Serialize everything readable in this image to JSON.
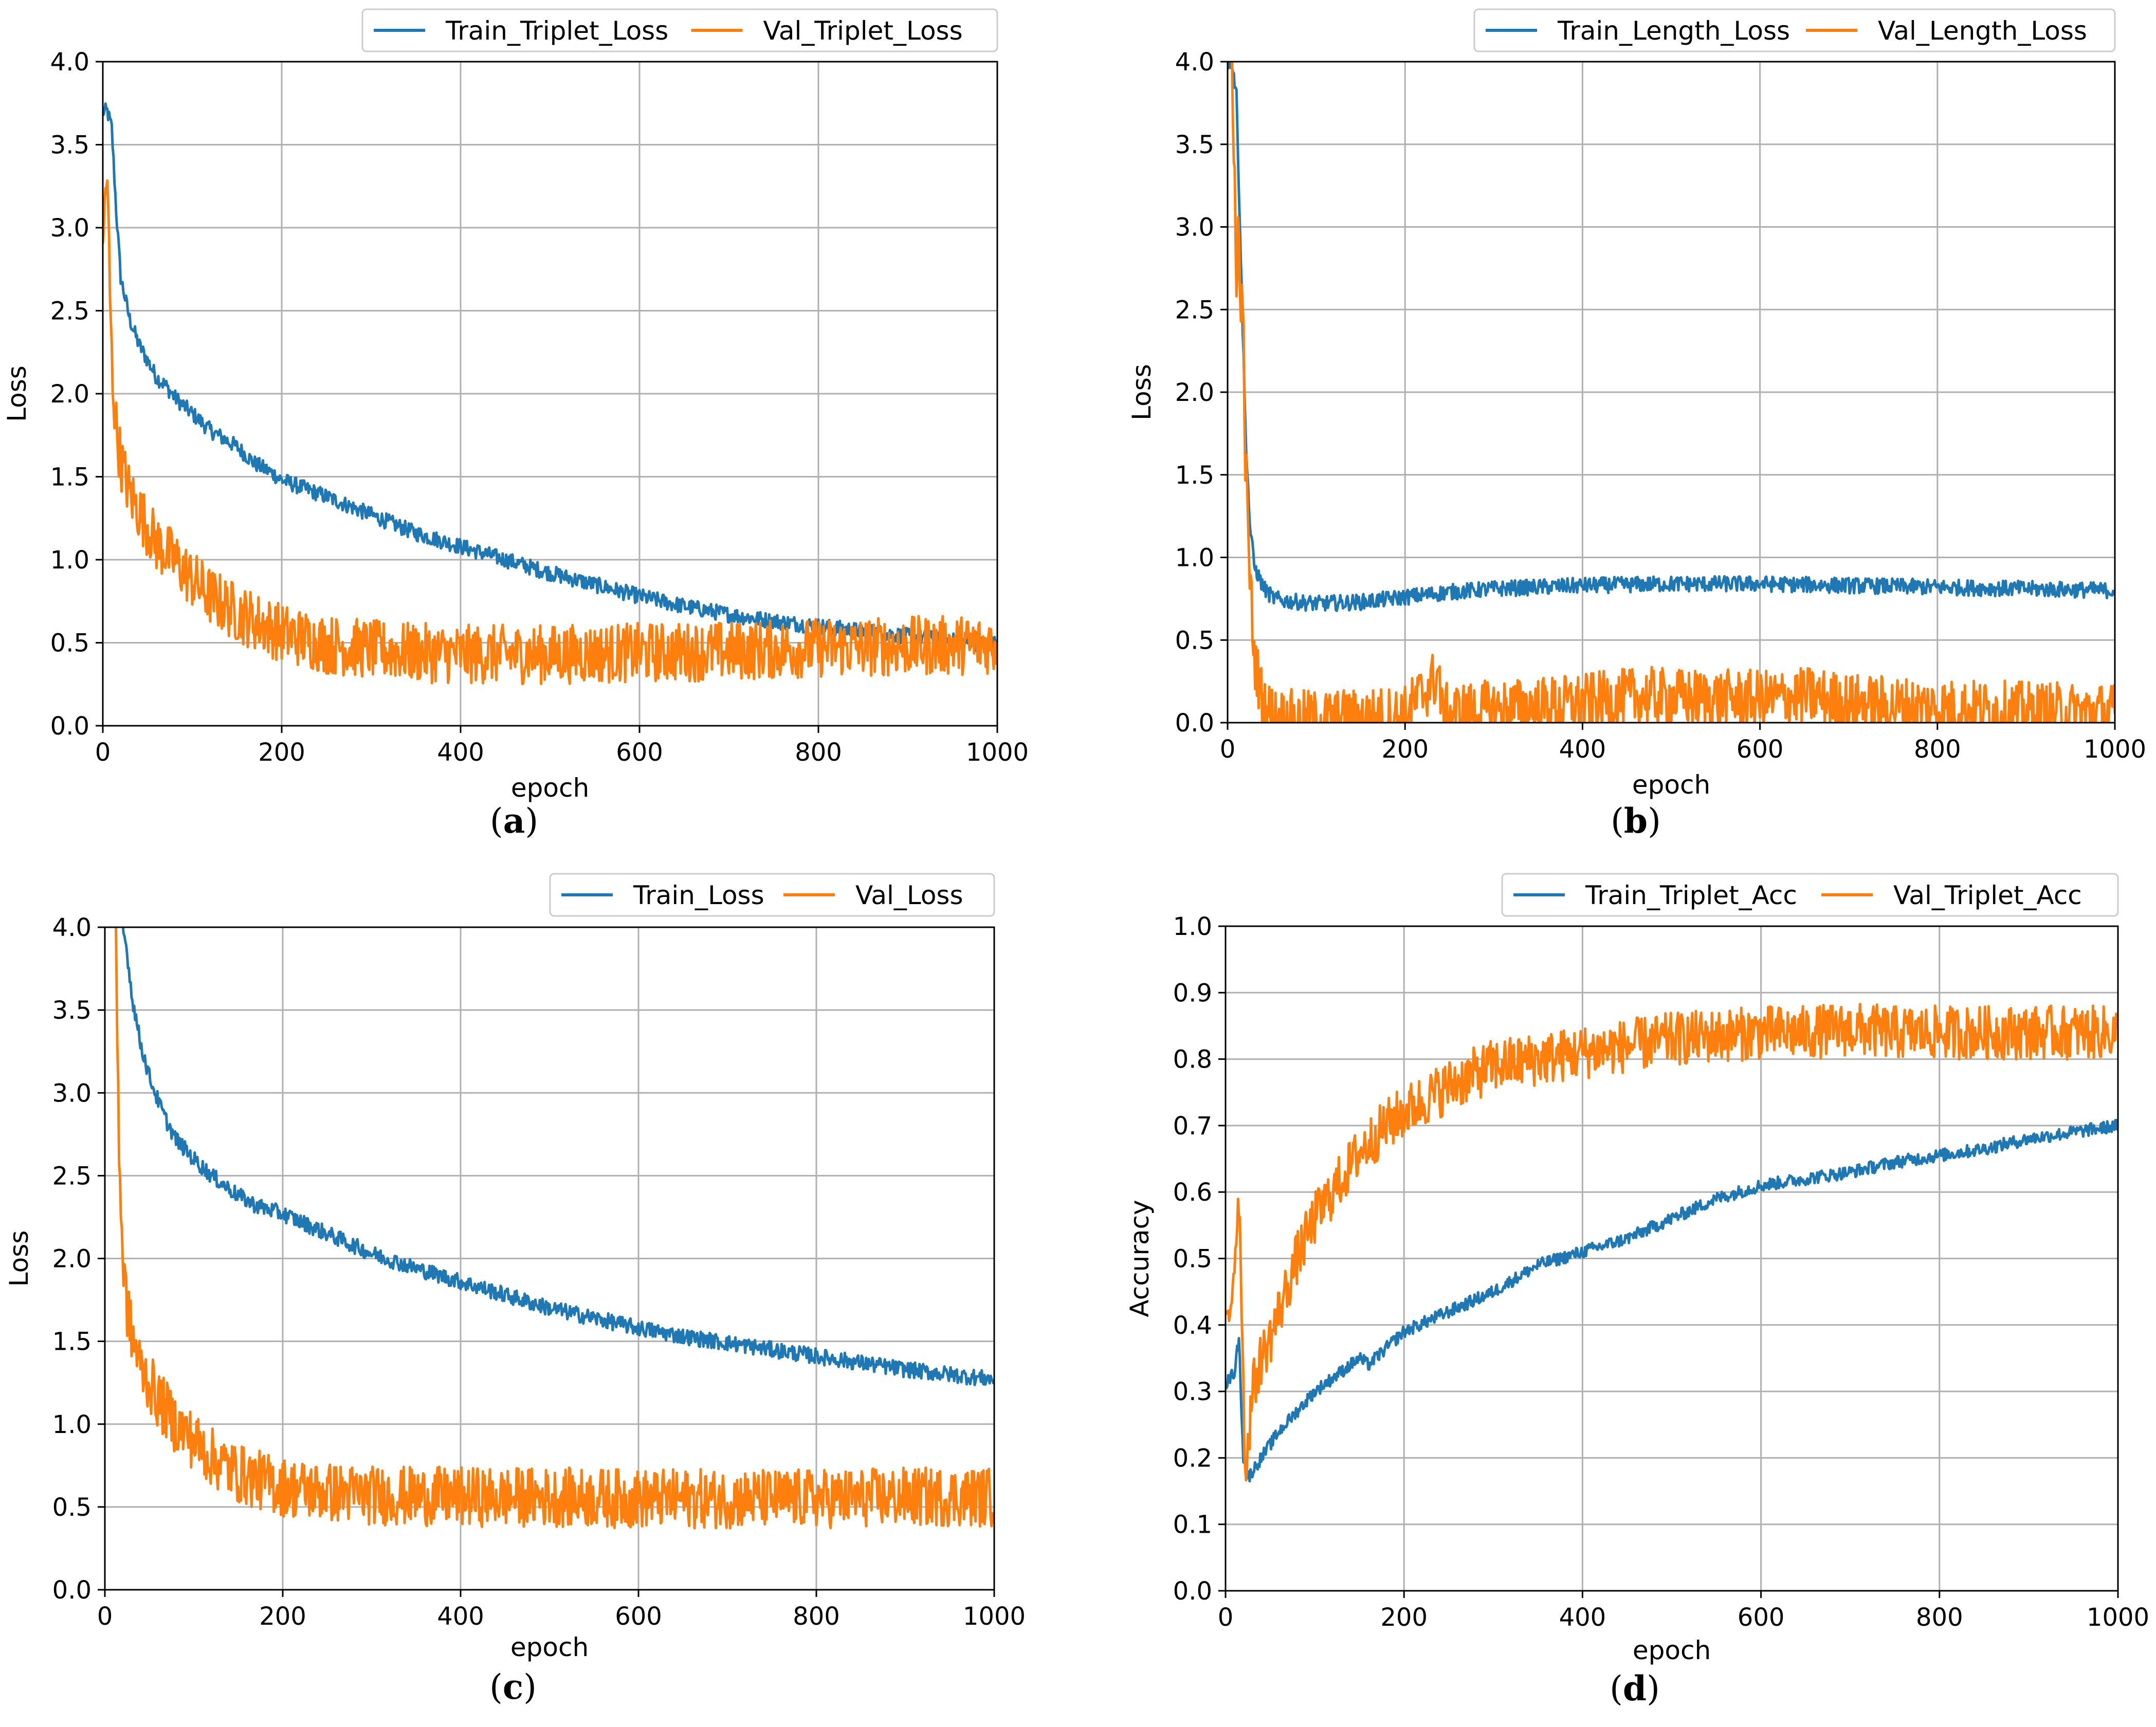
{
  "colors": {
    "train": "#1f77b4",
    "val": "#ff7f0e",
    "grid": "#b0b0b0",
    "frame": "#000000"
  },
  "chart_data": [
    {
      "panel": "a",
      "type": "line",
      "caption": {
        "open": "(",
        "letter": "a",
        "close": ")"
      },
      "xlabel": "epoch",
      "ylabel": "Loss",
      "xlim": [
        0,
        1000
      ],
      "ylim": [
        0,
        4.0
      ],
      "xticks": [
        "0",
        "200",
        "400",
        "600",
        "800",
        "1000"
      ],
      "yticks": [
        "0.0",
        "0.5",
        "1.0",
        "1.5",
        "2.0",
        "2.5",
        "3.0",
        "3.5",
        "4.0"
      ],
      "legend_position": "top-right, outside above axes",
      "series": [
        {
          "name": "Train_Triplet_Loss",
          "color_key": "train",
          "x": [
            0,
            5,
            10,
            15,
            20,
            30,
            40,
            50,
            60,
            70,
            80,
            100,
            120,
            150,
            170,
            190,
            200,
            250,
            300,
            350,
            400,
            450,
            500,
            550,
            600,
            650,
            700,
            750,
            800,
            850,
            900,
            950,
            1000
          ],
          "y": [
            3.7,
            3.7,
            3.6,
            3.1,
            2.7,
            2.45,
            2.3,
            2.2,
            2.1,
            2.05,
            1.98,
            1.88,
            1.78,
            1.68,
            1.58,
            1.52,
            1.48,
            1.38,
            1.27,
            1.16,
            1.08,
            1.0,
            0.92,
            0.85,
            0.78,
            0.72,
            0.67,
            0.63,
            0.6,
            0.57,
            0.54,
            0.51,
            0.49
          ]
        },
        {
          "name": "Val_Triplet_Loss",
          "color_key": "val",
          "x": [
            0,
            3,
            6,
            8,
            10,
            12,
            15,
            20,
            25,
            30,
            40,
            50,
            60,
            80,
            100,
            120,
            150,
            200,
            250,
            300,
            350,
            400,
            500,
            600,
            700,
            800,
            900,
            1000
          ],
          "y": [
            2.8,
            3.3,
            3.1,
            2.6,
            2.2,
            2.0,
            1.8,
            1.6,
            1.5,
            1.4,
            1.3,
            1.2,
            1.1,
            1.0,
            0.88,
            0.78,
            0.68,
            0.56,
            0.49,
            0.46,
            0.44,
            0.43,
            0.43,
            0.44,
            0.45,
            0.47,
            0.48,
            0.49
          ]
        }
      ]
    },
    {
      "panel": "b",
      "type": "line",
      "caption": {
        "open": "(",
        "letter": "b",
        "close": ")"
      },
      "xlabel": "epoch",
      "ylabel": "Loss",
      "xlim": [
        0,
        1000
      ],
      "ylim": [
        0,
        4.0
      ],
      "xticks": [
        "0",
        "200",
        "400",
        "600",
        "800",
        "1000"
      ],
      "yticks": [
        "0.0",
        "0.5",
        "1.0",
        "1.5",
        "2.0",
        "2.5",
        "3.0",
        "3.5",
        "4.0"
      ],
      "legend_position": "top-right, outside above axes",
      "series": [
        {
          "name": "Train_Length_Loss",
          "color_key": "train",
          "x": [
            0,
            5,
            10,
            15,
            20,
            25,
            30,
            40,
            50,
            60,
            80,
            100,
            150,
            200,
            250,
            300,
            400,
            500,
            600,
            700,
            800,
            900,
            1000
          ],
          "y": [
            4.0,
            4.0,
            3.8,
            2.8,
            1.8,
            1.2,
            0.95,
            0.82,
            0.76,
            0.74,
            0.73,
            0.72,
            0.73,
            0.76,
            0.79,
            0.81,
            0.83,
            0.84,
            0.84,
            0.83,
            0.82,
            0.81,
            0.8
          ]
        },
        {
          "name": "Val_Length_Loss",
          "color_key": "val",
          "x": [
            0,
            5,
            8,
            10,
            12,
            15,
            18,
            20,
            25,
            30,
            35,
            40,
            50,
            60,
            80,
            100,
            150,
            200,
            239,
            241,
            245,
            300,
            400,
            470,
            500,
            600,
            660,
            700,
            800,
            900,
            1000
          ],
          "y": [
            4.0,
            4.0,
            3.3,
            2.5,
            3.0,
            2.6,
            2.3,
            1.6,
            0.9,
            0.4,
            0.25,
            0.12,
            0.05,
            0.03,
            0.02,
            0.02,
            0.03,
            0.05,
            0.3,
            0.05,
            0.06,
            0.08,
            0.12,
            0.16,
            0.15,
            0.14,
            0.16,
            0.12,
            0.09,
            0.07,
            0.06
          ]
        }
      ]
    },
    {
      "panel": "c",
      "type": "line",
      "caption": {
        "open": "(",
        "letter": "c",
        "close": ")"
      },
      "xlabel": "epoch",
      "ylabel": "Loss",
      "xlim": [
        0,
        1000
      ],
      "ylim": [
        0,
        4.0
      ],
      "xticks": [
        "0",
        "200",
        "400",
        "600",
        "800",
        "1000"
      ],
      "yticks": [
        "0.0",
        "0.5",
        "1.0",
        "1.5",
        "2.0",
        "2.5",
        "3.0",
        "3.5",
        "4.0"
      ],
      "legend_position": "top-right, outside above axes",
      "series": [
        {
          "name": "Train_Loss",
          "color_key": "train",
          "x": [
            20,
            25,
            30,
            40,
            50,
            60,
            70,
            80,
            100,
            120,
            150,
            170,
            200,
            250,
            300,
            350,
            400,
            450,
            500,
            550,
            600,
            650,
            700,
            750,
            800,
            850,
            900,
            950,
            1000
          ],
          "y": [
            4.0,
            3.85,
            3.6,
            3.3,
            3.1,
            2.95,
            2.82,
            2.72,
            2.6,
            2.5,
            2.38,
            2.32,
            2.27,
            2.15,
            2.03,
            1.94,
            1.86,
            1.78,
            1.7,
            1.64,
            1.58,
            1.53,
            1.49,
            1.45,
            1.41,
            1.37,
            1.33,
            1.3,
            1.27
          ]
        },
        {
          "name": "Val_Loss",
          "color_key": "val",
          "x": [
            12,
            14,
            16,
            18,
            20,
            25,
            30,
            40,
            50,
            60,
            80,
            100,
            120,
            150,
            200,
            250,
            300,
            400,
            500,
            600,
            700,
            800,
            900,
            1000
          ],
          "y": [
            4.0,
            3.4,
            2.7,
            2.3,
            2.0,
            1.7,
            1.55,
            1.35,
            1.25,
            1.15,
            1.0,
            0.9,
            0.8,
            0.7,
            0.62,
            0.59,
            0.57,
            0.56,
            0.56,
            0.55,
            0.55,
            0.55,
            0.56,
            0.56
          ]
        }
      ]
    },
    {
      "panel": "d",
      "type": "line",
      "caption": {
        "open": "(",
        "letter": "d",
        "close": ")"
      },
      "xlabel": "epoch",
      "ylabel": "Accuracy",
      "xlim": [
        0,
        1000
      ],
      "ylim": [
        0,
        1.0
      ],
      "xticks": [
        "0",
        "200",
        "400",
        "600",
        "800",
        "1000"
      ],
      "yticks": [
        "0.0",
        "0.1",
        "0.2",
        "0.3",
        "0.4",
        "0.5",
        "0.6",
        "0.7",
        "0.8",
        "0.9",
        "1.0"
      ],
      "legend_position": "top-right, outside above axes",
      "series": [
        {
          "name": "Train_Triplet_Acc",
          "color_key": "train",
          "x": [
            0,
            5,
            10,
            15,
            20,
            25,
            30,
            40,
            50,
            60,
            80,
            100,
            150,
            160,
            200,
            250,
            300,
            350,
            400,
            450,
            500,
            550,
            600,
            650,
            700,
            750,
            800,
            850,
            900,
            950,
            1000
          ],
          "y": [
            0.31,
            0.32,
            0.33,
            0.38,
            0.2,
            0.17,
            0.18,
            0.2,
            0.22,
            0.24,
            0.27,
            0.3,
            0.35,
            0.34,
            0.39,
            0.42,
            0.45,
            0.49,
            0.51,
            0.53,
            0.56,
            0.59,
            0.61,
            0.62,
            0.63,
            0.645,
            0.655,
            0.665,
            0.68,
            0.69,
            0.7
          ]
        },
        {
          "name": "Val_Triplet_Acc",
          "color_key": "val",
          "x": [
            0,
            5,
            10,
            15,
            18,
            20,
            22,
            25,
            30,
            40,
            50,
            60,
            70,
            80,
            90,
            100,
            120,
            150,
            180,
            200,
            250,
            300,
            350,
            400,
            450,
            500,
            550,
            600,
            650,
            700,
            750,
            800,
            850,
            900,
            950,
            1000
          ],
          "y": [
            0.39,
            0.42,
            0.5,
            0.6,
            0.45,
            0.3,
            0.18,
            0.22,
            0.3,
            0.35,
            0.38,
            0.42,
            0.46,
            0.5,
            0.53,
            0.56,
            0.6,
            0.66,
            0.7,
            0.72,
            0.76,
            0.79,
            0.8,
            0.81,
            0.82,
            0.83,
            0.835,
            0.84,
            0.84,
            0.845,
            0.84,
            0.84,
            0.84,
            0.84,
            0.84,
            0.84
          ]
        }
      ]
    }
  ]
}
